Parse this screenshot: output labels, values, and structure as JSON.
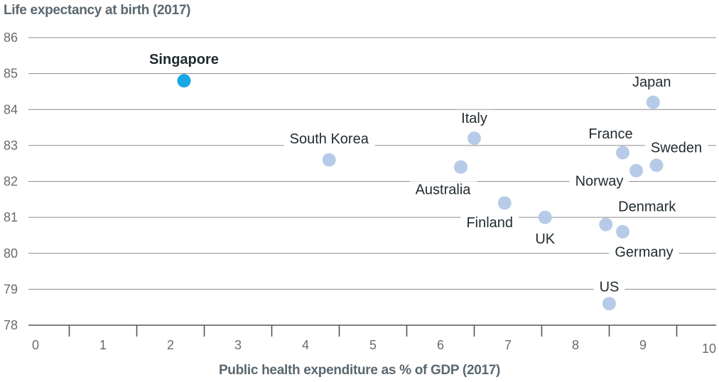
{
  "chart_data": {
    "type": "scatter",
    "ylabel": "Life expectancy at birth (2017)",
    "xlabel": "Public health expenditure as % of GDP (2017)",
    "xlim": [
      0,
      10
    ],
    "ylim": [
      78,
      86
    ],
    "xticks": [
      0,
      1,
      2,
      3,
      4,
      5,
      6,
      7,
      8,
      9,
      10
    ],
    "yticks": [
      78,
      79,
      80,
      81,
      82,
      83,
      84,
      85,
      86
    ],
    "grid": "horizontal",
    "points": [
      {
        "label": "Singapore",
        "x": 2.2,
        "y": 84.8,
        "highlight": true
      },
      {
        "label": "South Korea",
        "x": 4.35,
        "y": 82.6
      },
      {
        "label": "Italy",
        "x": 6.5,
        "y": 83.2
      },
      {
        "label": "Australia",
        "x": 6.3,
        "y": 82.4
      },
      {
        "label": "Finland",
        "x": 6.95,
        "y": 81.4
      },
      {
        "label": "UK",
        "x": 7.55,
        "y": 81.0
      },
      {
        "label": "Japan",
        "x": 9.15,
        "y": 84.2
      },
      {
        "label": "France",
        "x": 8.7,
        "y": 82.8
      },
      {
        "label": "Sweden",
        "x": 9.2,
        "y": 82.45
      },
      {
        "label": "Norway",
        "x": 8.9,
        "y": 82.3
      },
      {
        "label": "Denmark",
        "x": 8.45,
        "y": 80.8
      },
      {
        "label": "Germany",
        "x": 8.7,
        "y": 80.6
      },
      {
        "label": "US",
        "x": 8.5,
        "y": 78.6
      }
    ],
    "colors": {
      "highlight": "#1aa7e8",
      "point": "#b7cbe8",
      "grid": "#8c8c8c",
      "axis": "#555555"
    }
  }
}
